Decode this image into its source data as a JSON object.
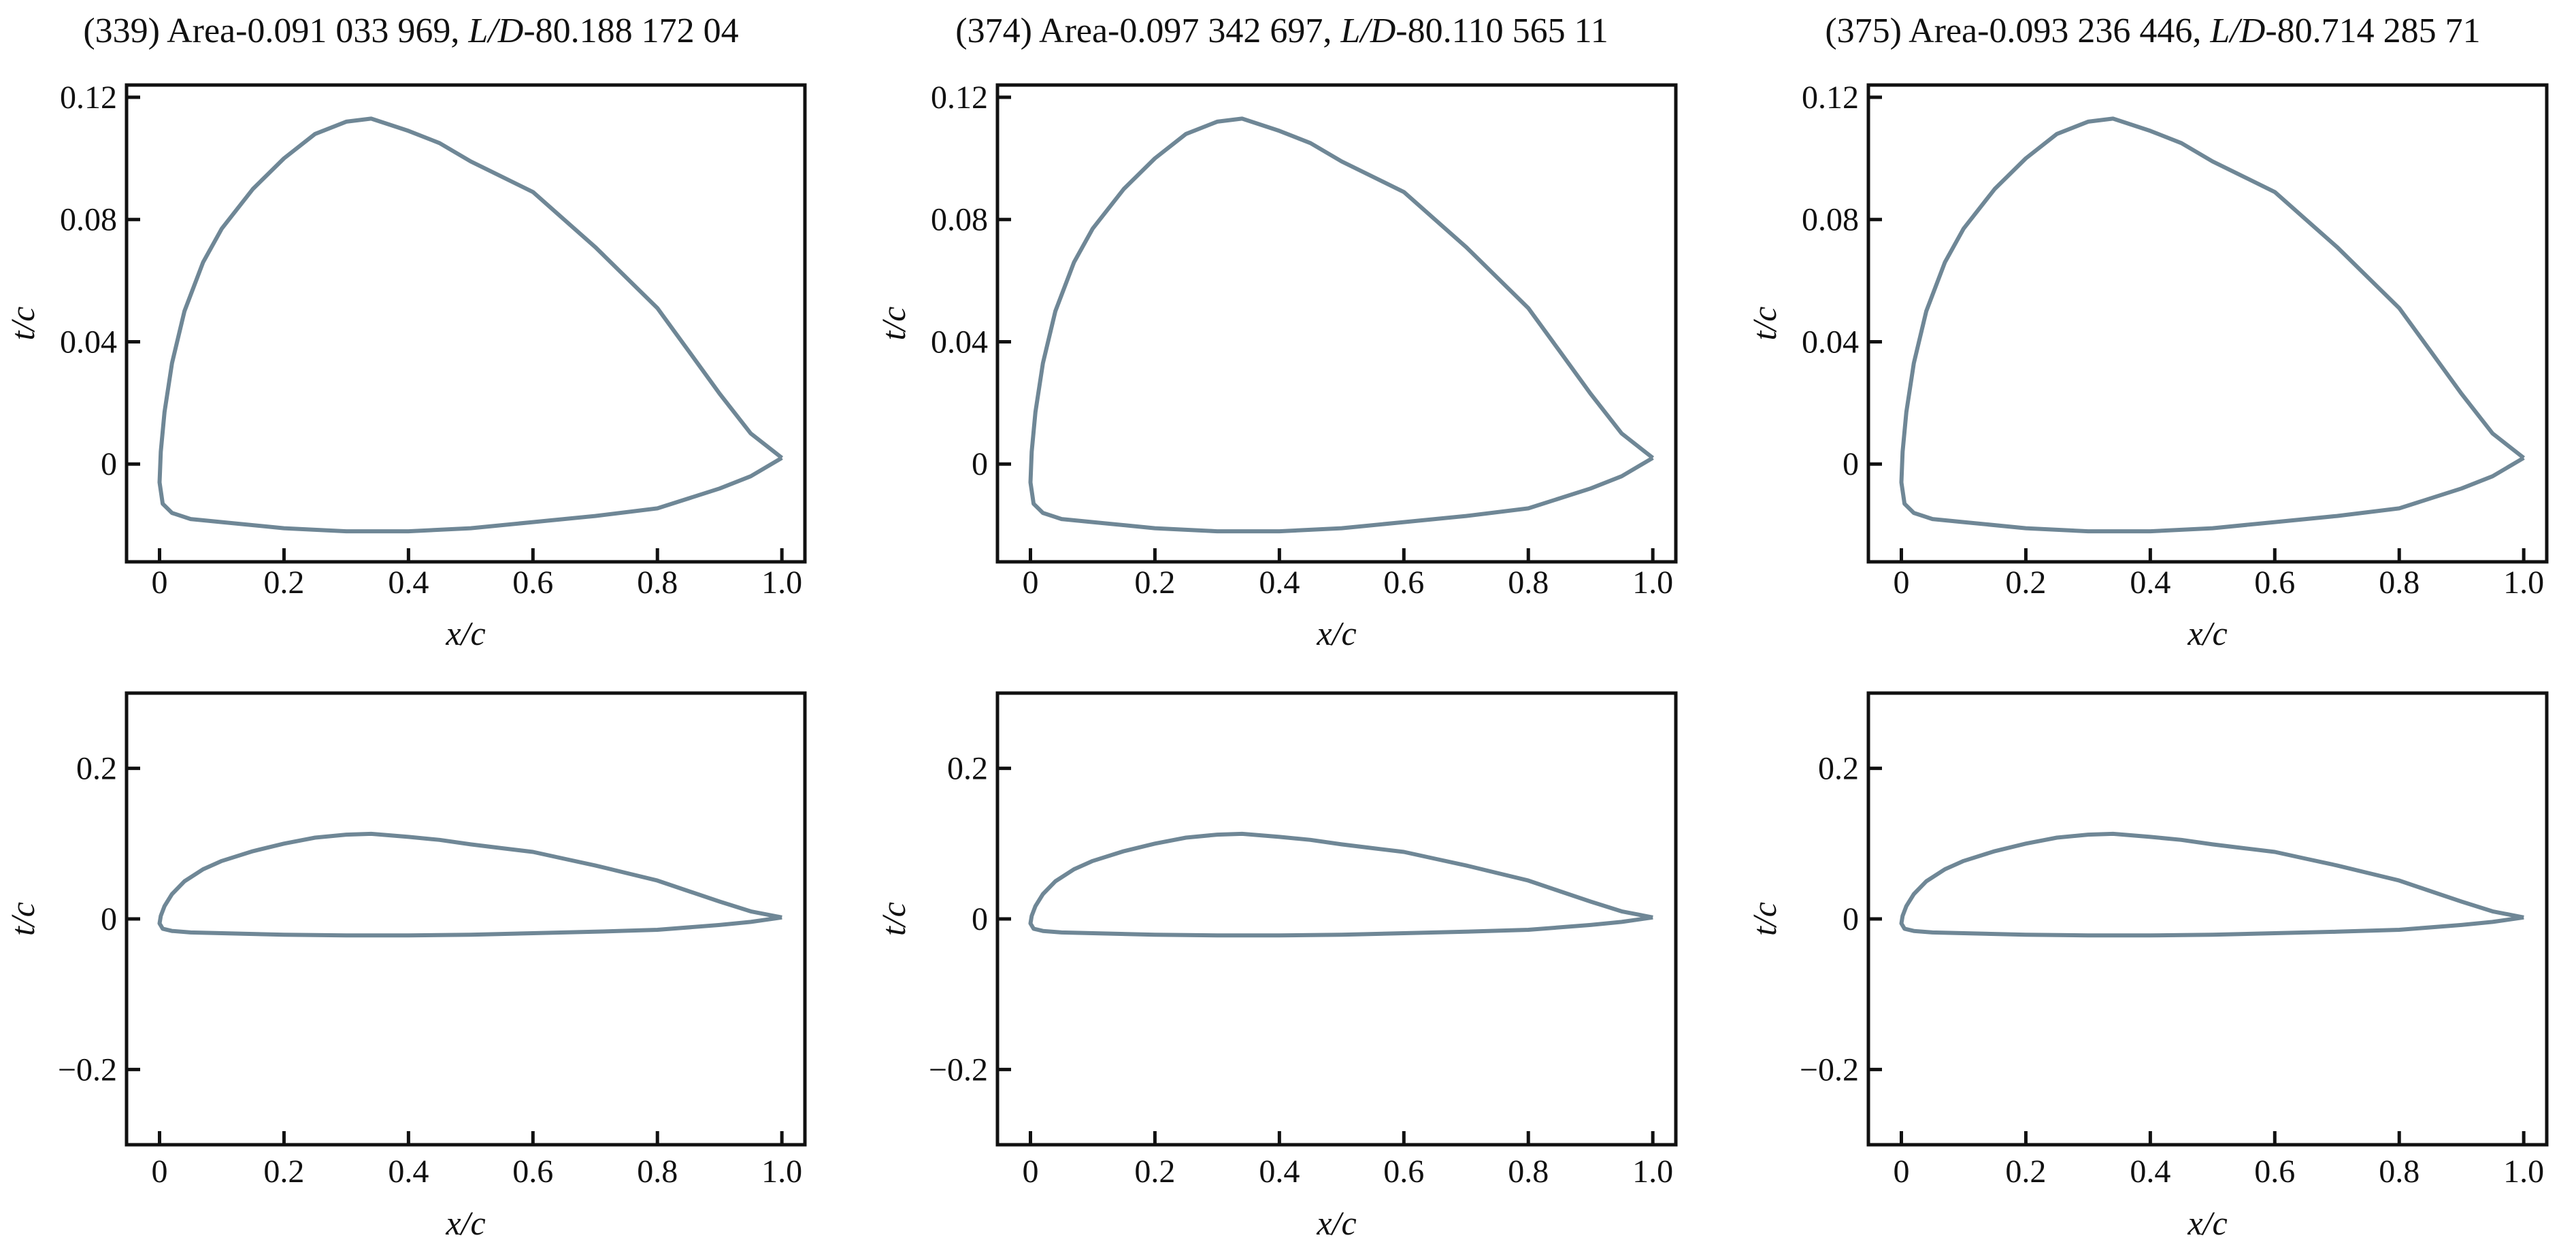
{
  "chart_data": {
    "type": "line",
    "line_color": "#6f8796",
    "panels": [
      {
        "title_prefix": "(339) Area-0.091 033 969, ",
        "title_ld": "L/D",
        "title_suffix": "-80.188 172 04",
        "top": {
          "xlabel": "x/c",
          "ylabel": "t/c",
          "xlim": [
            -0.053,
            1.037
          ],
          "ylim": [
            -0.032,
            0.124
          ],
          "xticks": [
            "0",
            "0.2",
            "0.4",
            "0.6",
            "0.8",
            "1.0"
          ],
          "xtick_values": [
            0,
            0.2,
            0.4,
            0.6,
            0.8,
            1.0
          ],
          "yticks": [
            "0",
            "0.04",
            "0.08",
            "0.12"
          ],
          "ytick_values": [
            0,
            0.04,
            0.08,
            0.12
          ]
        },
        "bottom": {
          "xlabel": "x/c",
          "ylabel": "t/c",
          "xlim": [
            -0.053,
            1.037
          ],
          "ylim": [
            -0.3,
            0.3
          ],
          "xticks": [
            "0",
            "0.2",
            "0.4",
            "0.6",
            "0.8",
            "1.0"
          ],
          "xtick_values": [
            0,
            0.2,
            0.4,
            0.6,
            0.8,
            1.0
          ],
          "yticks": [
            "−0.2",
            "0",
            "0.2"
          ],
          "ytick_values": [
            -0.2,
            0,
            0.2
          ]
        }
      },
      {
        "title_prefix": "(374) Area-0.097 342 697, ",
        "title_ld": "L/D",
        "title_suffix": "-80.110 565 11",
        "top": {
          "xlabel": "x/c",
          "ylabel": "t/c",
          "xlim": [
            -0.053,
            1.037
          ],
          "ylim": [
            -0.032,
            0.124
          ],
          "xticks": [
            "0",
            "0.2",
            "0.4",
            "0.6",
            "0.8",
            "1.0"
          ],
          "xtick_values": [
            0,
            0.2,
            0.4,
            0.6,
            0.8,
            1.0
          ],
          "yticks": [
            "0",
            "0.04",
            "0.08",
            "0.12"
          ],
          "ytick_values": [
            0,
            0.04,
            0.08,
            0.12
          ]
        },
        "bottom": {
          "xlabel": "x/c",
          "ylabel": "t/c",
          "xlim": [
            -0.053,
            1.037
          ],
          "ylim": [
            -0.3,
            0.3
          ],
          "xticks": [
            "0",
            "0.2",
            "0.4",
            "0.6",
            "0.8",
            "1.0"
          ],
          "xtick_values": [
            0,
            0.2,
            0.4,
            0.6,
            0.8,
            1.0
          ],
          "yticks": [
            "−0.2",
            "0",
            "0.2"
          ],
          "ytick_values": [
            -0.2,
            0,
            0.2
          ]
        }
      },
      {
        "title_prefix": "(375) Area-0.093 236 446, ",
        "title_ld": "L/D",
        "title_suffix": "-80.714 285 71",
        "top": {
          "xlabel": "x/c",
          "ylabel": "t/c",
          "xlim": [
            -0.053,
            1.037
          ],
          "ylim": [
            -0.032,
            0.124
          ],
          "xticks": [
            "0",
            "0.2",
            "0.4",
            "0.6",
            "0.8",
            "1.0"
          ],
          "xtick_values": [
            0,
            0.2,
            0.4,
            0.6,
            0.8,
            1.0
          ],
          "yticks": [
            "0",
            "0.04",
            "0.08",
            "0.12"
          ],
          "ytick_values": [
            0,
            0.04,
            0.08,
            0.12
          ]
        },
        "bottom": {
          "xlabel": "x/c",
          "ylabel": "t/c",
          "xlim": [
            -0.053,
            1.037
          ],
          "ylim": [
            -0.3,
            0.3
          ],
          "xticks": [
            "0",
            "0.2",
            "0.4",
            "0.6",
            "0.8",
            "1.0"
          ],
          "xtick_values": [
            0,
            0.2,
            0.4,
            0.6,
            0.8,
            1.0
          ],
          "yticks": [
            "−0.2",
            "0",
            "0.2"
          ],
          "ytick_values": [
            -0.2,
            0,
            0.2
          ]
        }
      }
    ],
    "airfoil": {
      "x": [
        1.0,
        0.95,
        0.9,
        0.85,
        0.8,
        0.75,
        0.7,
        0.65,
        0.6,
        0.55,
        0.5,
        0.45,
        0.4,
        0.34,
        0.3,
        0.25,
        0.2,
        0.15,
        0.1,
        0.07,
        0.04,
        0.02,
        0.008,
        0.002,
        0.0,
        0.005,
        0.02,
        0.05,
        0.1,
        0.2,
        0.3,
        0.4,
        0.5,
        0.6,
        0.7,
        0.8,
        0.9,
        0.95,
        1.0
      ],
      "y": [
        0.002,
        0.01,
        0.023,
        0.037,
        0.051,
        0.061,
        0.071,
        0.08,
        0.089,
        0.094,
        0.099,
        0.105,
        0.109,
        0.113,
        0.112,
        0.108,
        0.1,
        0.09,
        0.077,
        0.066,
        0.05,
        0.033,
        0.017,
        0.004,
        -0.006,
        -0.013,
        -0.016,
        -0.018,
        -0.019,
        -0.021,
        -0.022,
        -0.022,
        -0.021,
        -0.019,
        -0.017,
        -0.0145,
        -0.008,
        -0.004,
        0.002
      ]
    }
  }
}
